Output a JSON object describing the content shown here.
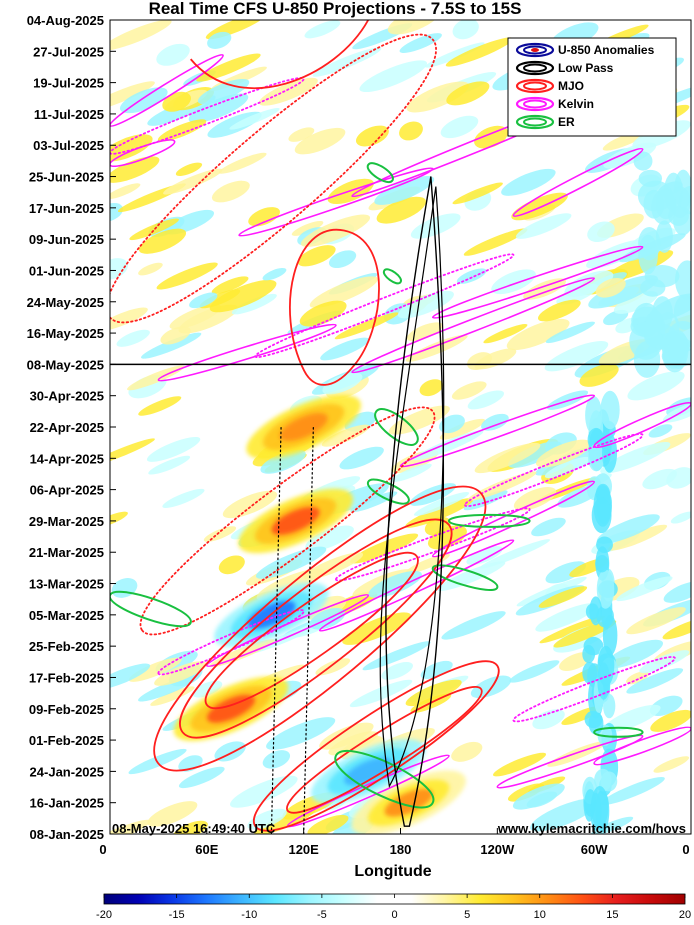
{
  "chart_data": {
    "type": "heatmap",
    "title": "Real Time CFS U-850 Projections - 7.5S to 15S",
    "xlabel": "Longitude",
    "ylabel": "",
    "x_ticks": [
      {
        "lon": 0,
        "label": "0"
      },
      {
        "lon": 60,
        "label": "60E"
      },
      {
        "lon": 120,
        "label": "120E"
      },
      {
        "lon": 180,
        "label": "180"
      },
      {
        "lon": 240,
        "label": "120W"
      },
      {
        "lon": 300,
        "label": "60W"
      },
      {
        "lon": 360,
        "label": "0"
      }
    ],
    "xlim": [
      0,
      360
    ],
    "y_ticks": [
      "04-Aug-2025",
      "27-Jul-2025",
      "19-Jul-2025",
      "11-Jul-2025",
      "03-Jul-2025",
      "25-Jun-2025",
      "17-Jun-2025",
      "09-Jun-2025",
      "01-Jun-2025",
      "24-May-2025",
      "16-May-2025",
      "08-May-2025",
      "30-Apr-2025",
      "22-Apr-2025",
      "14-Apr-2025",
      "06-Apr-2025",
      "29-Mar-2025",
      "21-Mar-2025",
      "13-Mar-2025",
      "05-Mar-2025",
      "25-Feb-2025",
      "17-Feb-2025",
      "09-Feb-2025",
      "01-Feb-2025",
      "24-Jan-2025",
      "16-Jan-2025",
      "08-Jan-2025"
    ],
    "ylim": [
      "08-Jan-2025",
      "04-Aug-2025"
    ],
    "current_date_line": "08-May-2025",
    "timestamp": "08-May-2025 16:49:40 UTC",
    "source": "www.kylemacritchie.com/hovs",
    "legend": {
      "position": "top-right",
      "entries": [
        {
          "label": "U-850 Anomalies",
          "color": "#0a0a9a"
        },
        {
          "label": "Low Pass",
          "color": "#000000"
        },
        {
          "label": "MJO",
          "color": "#ff1f1f"
        },
        {
          "label": "Kelvin",
          "color": "#ff19ff"
        },
        {
          "label": "ER",
          "color": "#19c040"
        }
      ]
    },
    "colorbar": {
      "ticks": [
        "-20",
        "-15",
        "-10",
        "-5",
        "0",
        "5",
        "10",
        "15",
        "20"
      ],
      "range": [
        -20,
        20
      ],
      "colors": [
        "#00007a",
        "#0000b4",
        "#0a37e6",
        "#1e78ff",
        "#3cb4ff",
        "#5ae6ff",
        "#9bf5ff",
        "#c8ffff",
        "#ffffff",
        "#ffffff",
        "#fff5a0",
        "#ffeb32",
        "#ffc31e",
        "#ff8c14",
        "#ff5014",
        "#e61e1e",
        "#c80a0a",
        "#a00000"
      ]
    },
    "features": [
      {
        "type": "anomaly",
        "sign": "negative",
        "lon": 100,
        "date": "2025-03-05",
        "amplitude": -13,
        "label": "strong easterly anomaly"
      },
      {
        "type": "anomaly",
        "sign": "negative",
        "lon": 160,
        "date": "2025-01-24",
        "amplitude": -11,
        "label": "easterly anomaly"
      },
      {
        "type": "anomaly",
        "sign": "positive",
        "lon": 75,
        "date": "2025-02-09",
        "amplitude": 12,
        "label": "westerly anomaly"
      },
      {
        "type": "anomaly",
        "sign": "positive",
        "lon": 115,
        "date": "2025-03-29",
        "amplitude": 13,
        "label": "westerly anomaly"
      },
      {
        "type": "anomaly",
        "sign": "positive",
        "lon": 120,
        "date": "2025-04-22",
        "amplitude": 11,
        "label": "westerly anomaly"
      },
      {
        "type": "anomaly",
        "sign": "positive",
        "lon": 185,
        "date": "2025-01-16",
        "amplitude": 10,
        "label": "westerly anomaly"
      },
      {
        "type": "contour",
        "field": "Low Pass",
        "lon_range": [
          170,
          205
        ],
        "date_range": [
          "2025-01-08",
          "2025-06-25"
        ]
      },
      {
        "type": "contour",
        "field": "MJO",
        "lon_range": [
          20,
          260
        ],
        "date_range": [
          "2025-01-16",
          "2025-08-04"
        ]
      },
      {
        "type": "contour",
        "field": "Kelvin",
        "lon_range": [
          0,
          360
        ],
        "date_range": [
          "2025-01-08",
          "2025-08-04"
        ]
      },
      {
        "type": "contour",
        "field": "ER",
        "lon_range": [
          0,
          330
        ],
        "date_range": [
          "2025-01-16",
          "2025-06-25"
        ]
      }
    ]
  }
}
